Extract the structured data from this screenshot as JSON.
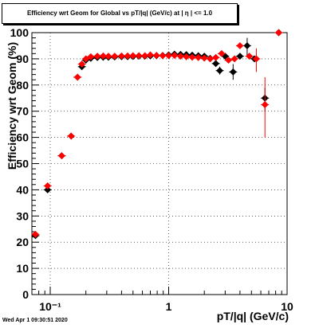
{
  "chart_data": {
    "type": "scatter",
    "title": "Efficiency wrt Geom for Global vs pT/|q| (GeV/c) at | η | <= 1.0",
    "xlabel": "pT/|q| (GeV/c)",
    "ylabel": "Efficiency wrt Geom (%)",
    "xscale": "log",
    "xlim": [
      0.07,
      10
    ],
    "ylim": [
      0,
      100
    ],
    "grid": true,
    "x_tick_labels": [
      "10⁻¹",
      "1",
      "10"
    ],
    "y_tick_labels": [
      "0",
      "10",
      "20",
      "30",
      "40",
      "50",
      "60",
      "70",
      "80",
      "90",
      "100"
    ],
    "series": [
      {
        "color": "#000000",
        "marker": "diamond",
        "points": [
          [
            0.075,
            22.5
          ],
          [
            0.095,
            40.0
          ],
          [
            0.125,
            53.0
          ],
          [
            0.15,
            60.5
          ],
          [
            0.17,
            83.0
          ],
          [
            0.185,
            87.0
          ],
          [
            0.2,
            89.5
          ],
          [
            0.22,
            90.2
          ],
          [
            0.25,
            90.5
          ],
          [
            0.28,
            90.6
          ],
          [
            0.31,
            90.6
          ],
          [
            0.35,
            90.7
          ],
          [
            0.4,
            90.8
          ],
          [
            0.45,
            90.8
          ],
          [
            0.5,
            90.9
          ],
          [
            0.56,
            91.0
          ],
          [
            0.63,
            91.0
          ],
          [
            0.7,
            91.1
          ],
          [
            0.79,
            91.2
          ],
          [
            0.89,
            91.3
          ],
          [
            1.0,
            91.5
          ],
          [
            1.12,
            91.8
          ],
          [
            1.26,
            91.7
          ],
          [
            1.41,
            91.6
          ],
          [
            1.58,
            91.4
          ],
          [
            1.78,
            91.2
          ],
          [
            2.0,
            91.0
          ],
          [
            2.24,
            90.2
          ],
          [
            2.5,
            88.2
          ],
          [
            2.7,
            85.5
          ],
          [
            3.0,
            91.0
          ],
          [
            3.5,
            85.0
          ],
          [
            4.0,
            91.0
          ],
          [
            4.6,
            95.0
          ],
          [
            5.3,
            90.0
          ],
          [
            6.5,
            75.0
          ],
          [
            8.5,
            100.0
          ]
        ]
      },
      {
        "color": "#ff0000",
        "marker": "diamond",
        "points": [
          [
            0.075,
            23.0
          ],
          [
            0.095,
            41.5
          ],
          [
            0.125,
            53.0
          ],
          [
            0.15,
            60.5
          ],
          [
            0.17,
            83.0
          ],
          [
            0.185,
            88.0
          ],
          [
            0.2,
            90.0
          ],
          [
            0.22,
            90.8
          ],
          [
            0.25,
            91.0
          ],
          [
            0.28,
            91.1
          ],
          [
            0.31,
            91.0
          ],
          [
            0.35,
            91.0
          ],
          [
            0.4,
            91.1
          ],
          [
            0.45,
            91.1
          ],
          [
            0.5,
            91.2
          ],
          [
            0.56,
            91.2
          ],
          [
            0.63,
            91.2
          ],
          [
            0.7,
            91.5
          ],
          [
            0.79,
            91.3
          ],
          [
            0.89,
            91.2
          ],
          [
            1.0,
            91.2
          ],
          [
            1.12,
            91.3
          ],
          [
            1.26,
            91.0
          ],
          [
            1.41,
            90.8
          ],
          [
            1.58,
            90.6
          ],
          [
            1.78,
            90.5
          ],
          [
            2.0,
            90.3
          ],
          [
            2.24,
            90.0
          ],
          [
            2.5,
            90.5
          ],
          [
            2.8,
            92.0
          ],
          [
            3.2,
            89.5
          ],
          [
            3.6,
            90.0
          ],
          [
            4.0,
            95.0
          ],
          [
            4.8,
            91.0
          ],
          [
            5.5,
            90.0
          ],
          [
            6.5,
            72.5
          ],
          [
            8.5,
            100.0
          ]
        ]
      }
    ]
  },
  "footer_text": "Wed Apr  1 09:30:51 2020"
}
